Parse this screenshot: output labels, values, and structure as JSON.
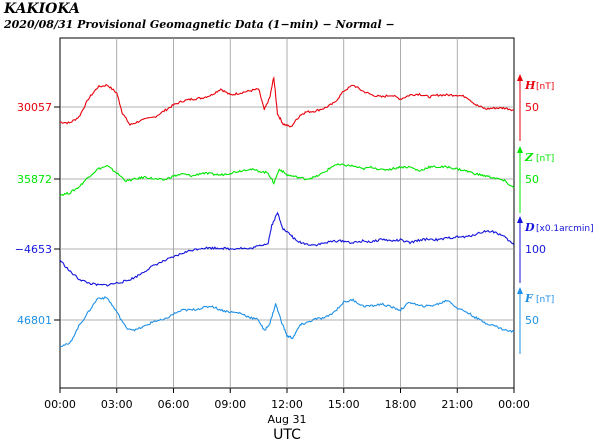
{
  "chart_data": {
    "type": "line",
    "station": "KAKIOKA",
    "subtitle": "2020/08/31  Provisional Geomagnetic Data (1−min)  − Normal −",
    "x_ticks": [
      "00:00",
      "03:00",
      "06:00",
      "09:00",
      "12:00",
      "15:00",
      "18:00",
      "21:00",
      "00:00"
    ],
    "x_date": "Aug 31",
    "x_unit": "UTC",
    "x_range_hours": [
      0,
      24
    ],
    "grid": true,
    "series": [
      {
        "name": "H",
        "unit": "[nT]",
        "baseline_label": "30057",
        "scale_label": "50",
        "color": "#e8000b",
        "points": [
          [
            0,
            -15
          ],
          [
            0.5,
            -16
          ],
          [
            1,
            -10
          ],
          [
            1.5,
            8
          ],
          [
            2,
            20
          ],
          [
            2.5,
            22
          ],
          [
            3,
            14
          ],
          [
            3.3,
            -6
          ],
          [
            3.7,
            -18
          ],
          [
            4.2,
            -14
          ],
          [
            5,
            -10
          ],
          [
            5.5,
            -4
          ],
          [
            6,
            2
          ],
          [
            6.5,
            6
          ],
          [
            7,
            8
          ],
          [
            7.5,
            9
          ],
          [
            8,
            12
          ],
          [
            8.5,
            18
          ],
          [
            9,
            12
          ],
          [
            9.5,
            14
          ],
          [
            10,
            16
          ],
          [
            10.5,
            18
          ],
          [
            10.8,
            -3
          ],
          [
            11.1,
            10
          ],
          [
            11.3,
            30
          ],
          [
            11.5,
            -7
          ],
          [
            11.8,
            -17
          ],
          [
            12.2,
            -20
          ],
          [
            12.7,
            -8
          ],
          [
            13,
            -5
          ],
          [
            13.5,
            -4
          ],
          [
            14,
            -1
          ],
          [
            14.5,
            4
          ],
          [
            15,
            16
          ],
          [
            15.5,
            22
          ],
          [
            16,
            16
          ],
          [
            16.5,
            12
          ],
          [
            17,
            10
          ],
          [
            17.5,
            12
          ],
          [
            18,
            8
          ],
          [
            18.5,
            12
          ],
          [
            19,
            13
          ],
          [
            19.5,
            10
          ],
          [
            20,
            12
          ],
          [
            20.5,
            12
          ],
          [
            21,
            12
          ],
          [
            21.5,
            10
          ],
          [
            22,
            2
          ],
          [
            22.5,
            -2
          ],
          [
            23,
            -1
          ],
          [
            23.5,
            -1
          ],
          [
            24,
            -3
          ]
        ]
      },
      {
        "name": "Z",
        "unit": "[nT]",
        "baseline_label": "35872",
        "scale_label": "50",
        "color": "#00e600",
        "points": [
          [
            0,
            -16
          ],
          [
            0.5,
            -14
          ],
          [
            1,
            -8
          ],
          [
            1.5,
            2
          ],
          [
            2,
            10
          ],
          [
            2.5,
            13
          ],
          [
            3,
            6
          ],
          [
            3.5,
            -2
          ],
          [
            4,
            0
          ],
          [
            4.5,
            2
          ],
          [
            5,
            0
          ],
          [
            5.5,
            -1
          ],
          [
            6,
            3
          ],
          [
            6.5,
            5
          ],
          [
            7,
            3
          ],
          [
            7.5,
            6
          ],
          [
            8,
            5
          ],
          [
            8.5,
            4
          ],
          [
            9,
            6
          ],
          [
            9.5,
            8
          ],
          [
            10,
            10
          ],
          [
            10.5,
            8
          ],
          [
            11,
            6
          ],
          [
            11.3,
            -4
          ],
          [
            11.6,
            10
          ],
          [
            12,
            4
          ],
          [
            12.5,
            2
          ],
          [
            13,
            0
          ],
          [
            13.5,
            2
          ],
          [
            14,
            7
          ],
          [
            14.5,
            14
          ],
          [
            15,
            14
          ],
          [
            15.5,
            13
          ],
          [
            16,
            10
          ],
          [
            16.5,
            12
          ],
          [
            17,
            9
          ],
          [
            17.5,
            10
          ],
          [
            18,
            12
          ],
          [
            18.5,
            12
          ],
          [
            19,
            8
          ],
          [
            19.5,
            12
          ],
          [
            20,
            12
          ],
          [
            20.5,
            12
          ],
          [
            21,
            10
          ],
          [
            21.5,
            8
          ],
          [
            22,
            5
          ],
          [
            22.5,
            3
          ],
          [
            23,
            1
          ],
          [
            23.5,
            -2
          ],
          [
            24,
            -9
          ]
        ]
      },
      {
        "name": "D",
        "unit": "[x0.1arcmin]",
        "baseline_label": "−4653",
        "scale_label": "100",
        "color": "#1414dc",
        "points": [
          [
            0,
            -11
          ],
          [
            0.5,
            -22
          ],
          [
            1,
            -30
          ],
          [
            1.5,
            -34
          ],
          [
            2,
            -36
          ],
          [
            2.5,
            -36
          ],
          [
            3,
            -34
          ],
          [
            3.5,
            -32
          ],
          [
            4,
            -28
          ],
          [
            4.5,
            -22
          ],
          [
            5,
            -16
          ],
          [
            5.5,
            -12
          ],
          [
            6,
            -8
          ],
          [
            6.5,
            -4
          ],
          [
            7,
            -1
          ],
          [
            7.5,
            1
          ],
          [
            8,
            1
          ],
          [
            8.5,
            1
          ],
          [
            9,
            0
          ],
          [
            9.5,
            1
          ],
          [
            10,
            0
          ],
          [
            10.5,
            3
          ],
          [
            11,
            6
          ],
          [
            11.2,
            24
          ],
          [
            11.5,
            36
          ],
          [
            11.8,
            20
          ],
          [
            12.2,
            14
          ],
          [
            12.5,
            8
          ],
          [
            13,
            5
          ],
          [
            13.5,
            4
          ],
          [
            14,
            6
          ],
          [
            14.5,
            8
          ],
          [
            15,
            8
          ],
          [
            15.5,
            6
          ],
          [
            16,
            8
          ],
          [
            16.5,
            7
          ],
          [
            17,
            10
          ],
          [
            17.5,
            8
          ],
          [
            18,
            9
          ],
          [
            18.5,
            6
          ],
          [
            19,
            9
          ],
          [
            19.5,
            10
          ],
          [
            20,
            9
          ],
          [
            20.5,
            11
          ],
          [
            21,
            12
          ],
          [
            21.5,
            12
          ],
          [
            22,
            15
          ],
          [
            22.5,
            18
          ],
          [
            23,
            17
          ],
          [
            23.5,
            12
          ],
          [
            24,
            4
          ]
        ]
      },
      {
        "name": "F",
        "unit": "[nT]",
        "baseline_label": "46801",
        "scale_label": "50",
        "color": "#1e90e6",
        "points": [
          [
            0,
            -26
          ],
          [
            0.5,
            -24
          ],
          [
            1,
            -6
          ],
          [
            1.5,
            8
          ],
          [
            2,
            22
          ],
          [
            2.5,
            22
          ],
          [
            3,
            8
          ],
          [
            3.5,
            -8
          ],
          [
            4,
            -10
          ],
          [
            4.5,
            -6
          ],
          [
            5,
            -1
          ],
          [
            5.5,
            0
          ],
          [
            6,
            6
          ],
          [
            6.5,
            10
          ],
          [
            7,
            10
          ],
          [
            7.5,
            12
          ],
          [
            8,
            14
          ],
          [
            8.5,
            10
          ],
          [
            9,
            8
          ],
          [
            9.5,
            7
          ],
          [
            10,
            3
          ],
          [
            10.5,
            0
          ],
          [
            10.8,
            -11
          ],
          [
            11.1,
            -3
          ],
          [
            11.4,
            16
          ],
          [
            11.7,
            -1
          ],
          [
            12,
            -16
          ],
          [
            12.3,
            -18
          ],
          [
            12.7,
            -5
          ],
          [
            13,
            -3
          ],
          [
            13.5,
            1
          ],
          [
            14,
            2
          ],
          [
            14.5,
            8
          ],
          [
            15,
            18
          ],
          [
            15.5,
            20
          ],
          [
            16,
            14
          ],
          [
            16.5,
            14
          ],
          [
            17,
            16
          ],
          [
            17.5,
            13
          ],
          [
            18,
            10
          ],
          [
            18.5,
            18
          ],
          [
            19,
            14
          ],
          [
            19.5,
            14
          ],
          [
            20,
            16
          ],
          [
            20.5,
            20
          ],
          [
            21,
            12
          ],
          [
            21.5,
            8
          ],
          [
            22,
            2
          ],
          [
            22.5,
            -3
          ],
          [
            23,
            -6
          ],
          [
            23.5,
            -10
          ],
          [
            24,
            -12
          ]
        ]
      }
    ]
  }
}
